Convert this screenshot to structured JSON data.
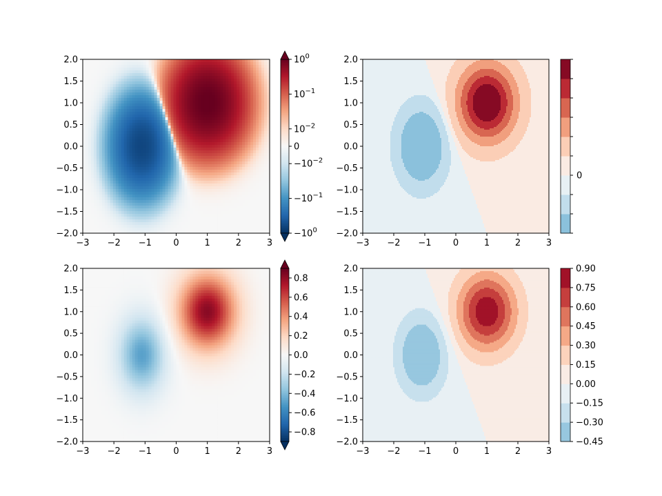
{
  "chart_data": [
    {
      "type": "heatmap",
      "panel": "top-left",
      "style": "pcolormesh",
      "norm": "symlog",
      "function": "z = exp(-x^2 - y^2) - exp(-(x-1)^2 - (y-1)^2) * -1 ... rendered as Z2 - Z1 style dipole",
      "colormap": "RdBu_r",
      "xlim": [
        -3,
        3
      ],
      "ylim": [
        -2,
        2
      ],
      "xticks": [
        "−3",
        "−2",
        "−1",
        "0",
        "1",
        "2",
        "3"
      ],
      "yticks": [
        "2.0",
        "1.5",
        "1.0",
        "0.5",
        "0.0",
        "−0.5",
        "−1.0",
        "−1.5",
        "−2.0"
      ],
      "zrange": [
        -1,
        1
      ],
      "colorbar": {
        "extend": "both",
        "ticks": [
          {
            "value": 1,
            "label_base": "10",
            "label_exp": "0",
            "negative": false
          },
          {
            "value": 0.1,
            "label_base": "10",
            "label_exp": "−1",
            "negative": false
          },
          {
            "value": 0.01,
            "label_base": "10",
            "label_exp": "−2",
            "negative": false
          },
          {
            "value": 0,
            "label_base": "0",
            "label_exp": "",
            "negative": false
          },
          {
            "value": -0.01,
            "label_base": "10",
            "label_exp": "−2",
            "negative": true
          },
          {
            "value": -0.1,
            "label_base": "10",
            "label_exp": "−1",
            "negative": true
          },
          {
            "value": -1,
            "label_base": "10",
            "label_exp": "0",
            "negative": true
          }
        ]
      }
    },
    {
      "type": "heatmap",
      "panel": "top-right",
      "style": "contourf",
      "colormap": "RdBu_r",
      "xlim": [
        -3,
        3
      ],
      "ylim": [
        -2,
        2
      ],
      "xticks": [
        "−3",
        "−2",
        "−1",
        "0",
        "1",
        "2",
        "3"
      ],
      "yticks": [
        "2.0",
        "1.5",
        "1.0",
        "0.5",
        "0.0",
        "−0.5",
        "−1.0",
        "−1.5",
        "−2.0"
      ],
      "levels": [
        -0.6,
        -0.4,
        -0.2,
        0,
        0.2,
        0.4,
        0.6,
        0.8,
        1.0,
        1.2
      ],
      "colorbar": {
        "ticks": [
          {
            "value": 0,
            "label": "0"
          }
        ]
      }
    },
    {
      "type": "heatmap",
      "panel": "bottom-left",
      "style": "pcolormesh",
      "norm": "linear",
      "colormap": "RdBu_r",
      "xlim": [
        -3,
        3
      ],
      "ylim": [
        -2,
        2
      ],
      "xticks": [
        "−3",
        "−2",
        "−1",
        "0",
        "1",
        "2",
        "3"
      ],
      "yticks": [
        "2.0",
        "1.5",
        "1.0",
        "0.5",
        "0.0",
        "−0.5",
        "−1.0",
        "−1.5",
        "−2.0"
      ],
      "zrange": [
        -0.9,
        0.9
      ],
      "colorbar": {
        "extend": "both",
        "ticks": [
          {
            "value": 0.8,
            "label": "0.8"
          },
          {
            "value": 0.6,
            "label": "0.6"
          },
          {
            "value": 0.4,
            "label": "0.4"
          },
          {
            "value": 0.2,
            "label": "0.2"
          },
          {
            "value": 0.0,
            "label": "0.0"
          },
          {
            "value": -0.2,
            "label": "−0.2"
          },
          {
            "value": -0.4,
            "label": "−0.4"
          },
          {
            "value": -0.6,
            "label": "−0.6"
          },
          {
            "value": -0.8,
            "label": "−0.8"
          }
        ]
      }
    },
    {
      "type": "heatmap",
      "panel": "bottom-right",
      "style": "contourf",
      "colormap": "RdBu_r",
      "xlim": [
        -3,
        3
      ],
      "ylim": [
        -2,
        2
      ],
      "xticks": [
        "−3",
        "−2",
        "−1",
        "0",
        "1",
        "2",
        "3"
      ],
      "yticks": [
        "2.0",
        "1.5",
        "1.0",
        "0.5",
        "0.0",
        "−0.5",
        "−1.0",
        "−1.5",
        "−2.0"
      ],
      "levels": [
        -0.45,
        -0.3,
        -0.15,
        0,
        0.15,
        0.3,
        0.45,
        0.6,
        0.75,
        0.9
      ],
      "colorbar": {
        "ticks": [
          {
            "value": 0.9,
            "label": "0.90"
          },
          {
            "value": 0.75,
            "label": "0.75"
          },
          {
            "value": 0.6,
            "label": "0.60"
          },
          {
            "value": 0.45,
            "label": "0.45"
          },
          {
            "value": 0.3,
            "label": "0.30"
          },
          {
            "value": 0.15,
            "label": "0.15"
          },
          {
            "value": 0.0,
            "label": "0.00"
          },
          {
            "value": -0.15,
            "label": "−0.15"
          },
          {
            "value": -0.3,
            "label": "−0.30"
          },
          {
            "value": -0.45,
            "label": "−0.45"
          }
        ]
      }
    }
  ]
}
